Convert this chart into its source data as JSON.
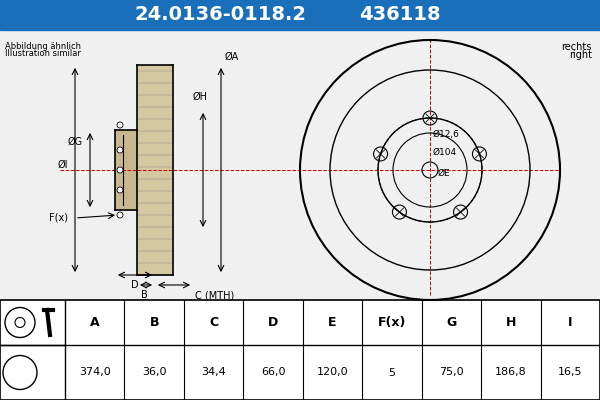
{
  "title1": "24.0136-0118.2",
  "title2": "436118",
  "header_bg": "#1a6fba",
  "header_text_color": "#ffffff",
  "bg_color": "#ffffff",
  "drawing_bg": "#f0f0f0",
  "top_left_text1": "Abbildung ähnlich",
  "top_left_text2": "Illustration similar",
  "top_right_text1": "rechts",
  "top_right_text2": "right",
  "table_headers": [
    "A",
    "B",
    "C",
    "D",
    "E",
    "F(x)",
    "G",
    "H",
    "I"
  ],
  "table_values": [
    "374,0",
    "36,0",
    "34,4",
    "66,0",
    "120,0",
    "5",
    "75,0",
    "186,8",
    "16,5"
  ],
  "dim_labels": [
    "ØI",
    "ØG",
    "ØH",
    "ØA",
    "F(x)",
    "B",
    "C (MTH)",
    "D"
  ],
  "circle_labels": [
    "ØE",
    "Ø104",
    "Ø12,6"
  ]
}
